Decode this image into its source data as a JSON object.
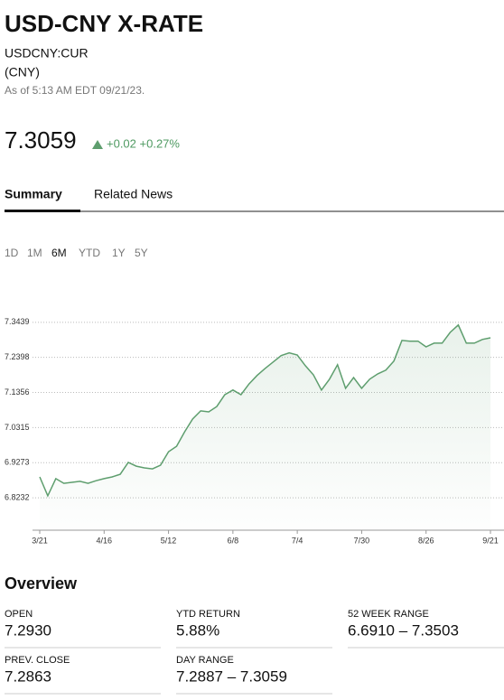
{
  "header": {
    "title": "USD-CNY X-RATE",
    "symbol": "USDCNY:CUR",
    "currency": "(CNY)",
    "as_of": "As of 5:13 AM EDT 09/21/23."
  },
  "quote": {
    "price": "7.3059",
    "change": "+0.02 +0.27%"
  },
  "tabs": {
    "items": [
      "Summary",
      "Related News"
    ],
    "active": 0
  },
  "ranges": {
    "items": [
      "1D",
      "1M",
      "6M",
      "YTD",
      "1Y",
      "5Y"
    ],
    "active": 2
  },
  "chart_data": {
    "type": "line",
    "color": "#5e9e6e",
    "grid": true,
    "categories": [
      "3/21",
      null,
      null,
      null,
      null,
      null,
      null,
      null,
      "4/16",
      null,
      null,
      null,
      null,
      null,
      null,
      null,
      "5/12",
      null,
      null,
      null,
      null,
      null,
      null,
      null,
      "6/8",
      null,
      null,
      null,
      null,
      null,
      null,
      null,
      "7/4",
      null,
      null,
      null,
      null,
      null,
      null,
      null,
      "7/30",
      null,
      null,
      null,
      null,
      null,
      null,
      null,
      "8/26",
      null,
      null,
      null,
      null,
      null,
      null,
      null,
      "9/21"
    ],
    "values": [
      6.885,
      6.829,
      6.88,
      6.866,
      6.869,
      6.872,
      6.866,
      6.874,
      6.88,
      6.885,
      6.893,
      6.928,
      6.917,
      6.912,
      6.909,
      6.92,
      6.96,
      6.976,
      7.019,
      7.057,
      7.081,
      7.078,
      7.094,
      7.129,
      7.143,
      7.129,
      7.161,
      7.186,
      7.207,
      7.226,
      7.245,
      7.253,
      7.247,
      7.215,
      7.188,
      7.143,
      7.175,
      7.218,
      7.148,
      7.18,
      7.148,
      7.175,
      7.191,
      7.202,
      7.229,
      7.29,
      7.288,
      7.288,
      7.271,
      7.282,
      7.282,
      7.314,
      7.336,
      7.282,
      7.282,
      7.293,
      7.298
    ],
    "ylim": [
      6.727,
      7.389
    ],
    "yticks": [
      6.8232,
      6.9273,
      7.0315,
      7.1356,
      7.2398,
      7.3439
    ]
  },
  "overview": {
    "title": "Overview",
    "items": [
      {
        "label": "OPEN",
        "value": "7.2930"
      },
      {
        "label": "YTD RETURN",
        "value": "5.88%"
      },
      {
        "label": "52 WEEK RANGE",
        "value": "6.6910 – 7.3503"
      },
      {
        "label": "PREV. CLOSE",
        "value": "7.2863"
      },
      {
        "label": "DAY RANGE",
        "value": "7.2887 – 7.3059"
      }
    ]
  }
}
